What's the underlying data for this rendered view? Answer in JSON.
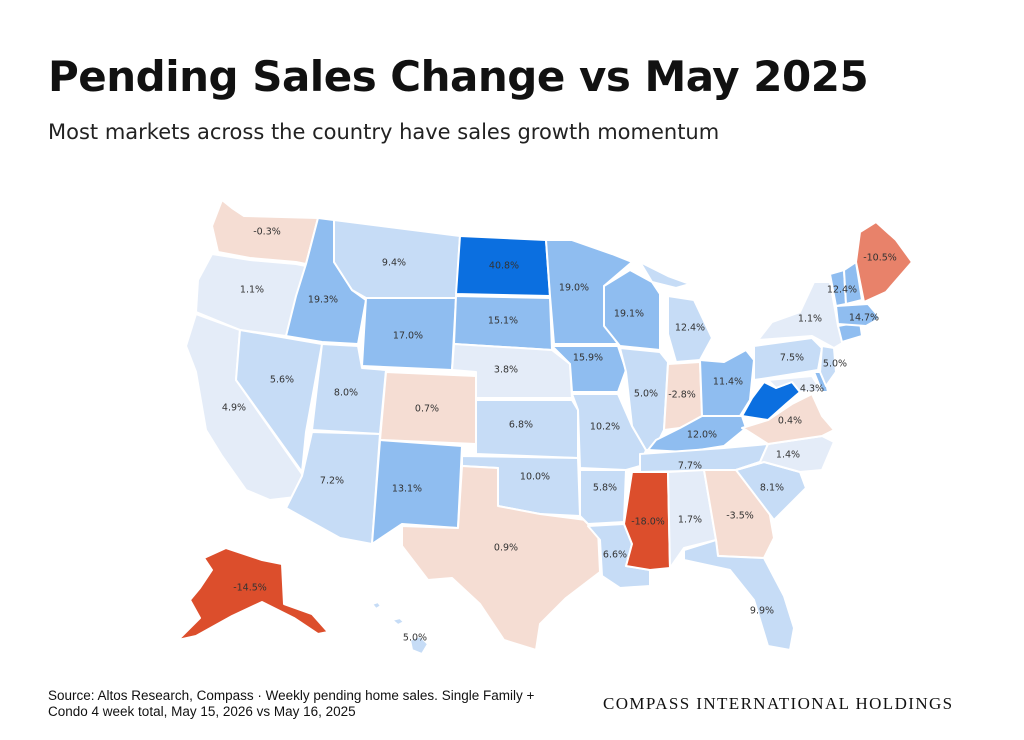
{
  "header": {
    "title": "Pending Sales Change vs May 2025",
    "subtitle": "Most markets across the country have sales growth momentum"
  },
  "footer": {
    "source": "Source: Altos Research, Compass · Weekly pending home sales. Single Family + Condo 4 week total, May 15, 2026 vs May 16, 2025",
    "brand": "COMPASS INTERNATIONAL HOLDINGS"
  },
  "map": {
    "metric": "Pending sales change (%)",
    "colors": {
      "strong_growth": "#0b6fe0",
      "growth": "#8fbdf0",
      "mild_growth": "#c6dcf6",
      "flat": "#e4ecf8",
      "slight_decline": "#f5ddd3",
      "decline": "#e8826a",
      "strong_decline": "#dc4e2c"
    },
    "states": [
      {
        "id": "WA",
        "label": "-0.3%",
        "value": -0.3
      },
      {
        "id": "OR",
        "label": "1.1%",
        "value": 1.1
      },
      {
        "id": "CA",
        "label": "4.9%",
        "value": 4.9
      },
      {
        "id": "NV",
        "label": "5.6%",
        "value": 5.6
      },
      {
        "id": "ID",
        "label": "19.3%",
        "value": 19.3
      },
      {
        "id": "MT",
        "label": "9.4%",
        "value": 9.4
      },
      {
        "id": "WY",
        "label": "17.0%",
        "value": 17.0
      },
      {
        "id": "UT",
        "label": "8.0%",
        "value": 8.0
      },
      {
        "id": "AZ",
        "label": "7.2%",
        "value": 7.2
      },
      {
        "id": "CO",
        "label": "0.7%",
        "value": 0.7
      },
      {
        "id": "NM",
        "label": "13.1%",
        "value": 13.1
      },
      {
        "id": "ND",
        "label": "40.8%",
        "value": 40.8
      },
      {
        "id": "SD",
        "label": "15.1%",
        "value": 15.1
      },
      {
        "id": "NE",
        "label": "3.8%",
        "value": 3.8
      },
      {
        "id": "KS",
        "label": "6.8%",
        "value": 6.8
      },
      {
        "id": "OK",
        "label": "10.0%",
        "value": 10.0
      },
      {
        "id": "TX",
        "label": "0.9%",
        "value": 0.9
      },
      {
        "id": "MN",
        "label": "19.0%",
        "value": 19.0
      },
      {
        "id": "IA",
        "label": "15.9%",
        "value": 15.9
      },
      {
        "id": "MO",
        "label": "10.2%",
        "value": 10.2
      },
      {
        "id": "AR",
        "label": "5.8%",
        "value": 5.8
      },
      {
        "id": "LA",
        "label": "6.6%",
        "value": 6.6
      },
      {
        "id": "WI",
        "label": "19.1%",
        "value": 19.1
      },
      {
        "id": "IL",
        "label": "5.0%",
        "value": 5.0
      },
      {
        "id": "MI",
        "label": "12.4%",
        "value": 12.4
      },
      {
        "id": "IN",
        "label": "-2.8%",
        "value": -2.8
      },
      {
        "id": "OH",
        "label": "11.4%",
        "value": 11.4
      },
      {
        "id": "KY",
        "label": "12.0%",
        "value": 12.0
      },
      {
        "id": "TN",
        "label": "7.7%",
        "value": 7.7
      },
      {
        "id": "MS",
        "label": "-18.0%",
        "value": -18.0
      },
      {
        "id": "AL",
        "label": "1.7%",
        "value": 1.7
      },
      {
        "id": "GA",
        "label": "-3.5%",
        "value": -3.5
      },
      {
        "id": "FL",
        "label": "9.9%",
        "value": 9.9
      },
      {
        "id": "SC",
        "label": "8.1%",
        "value": 8.1
      },
      {
        "id": "NC",
        "label": "1.4%",
        "value": 1.4
      },
      {
        "id": "VA",
        "label": "0.4%",
        "value": 0.4
      },
      {
        "id": "WV",
        "label": "",
        "value": null
      },
      {
        "id": "MD",
        "label": "4.3%",
        "value": 4.3
      },
      {
        "id": "DE",
        "label": "",
        "value": null
      },
      {
        "id": "PA",
        "label": "7.5%",
        "value": 7.5
      },
      {
        "id": "NJ",
        "label": "5.0%",
        "value": 5.0
      },
      {
        "id": "NY",
        "label": "1.1%",
        "value": 1.1
      },
      {
        "id": "CT",
        "label": "",
        "value": null
      },
      {
        "id": "MA",
        "label": "14.7%",
        "value": 14.7
      },
      {
        "id": "VT",
        "label": "",
        "value": null
      },
      {
        "id": "NH",
        "label": "12.4%",
        "value": 12.4
      },
      {
        "id": "ME",
        "label": "-10.5%",
        "value": -10.5
      },
      {
        "id": "AK",
        "label": "-14.5%",
        "value": -14.5
      },
      {
        "id": "HI",
        "label": "5.0%",
        "value": 5.0
      }
    ]
  }
}
